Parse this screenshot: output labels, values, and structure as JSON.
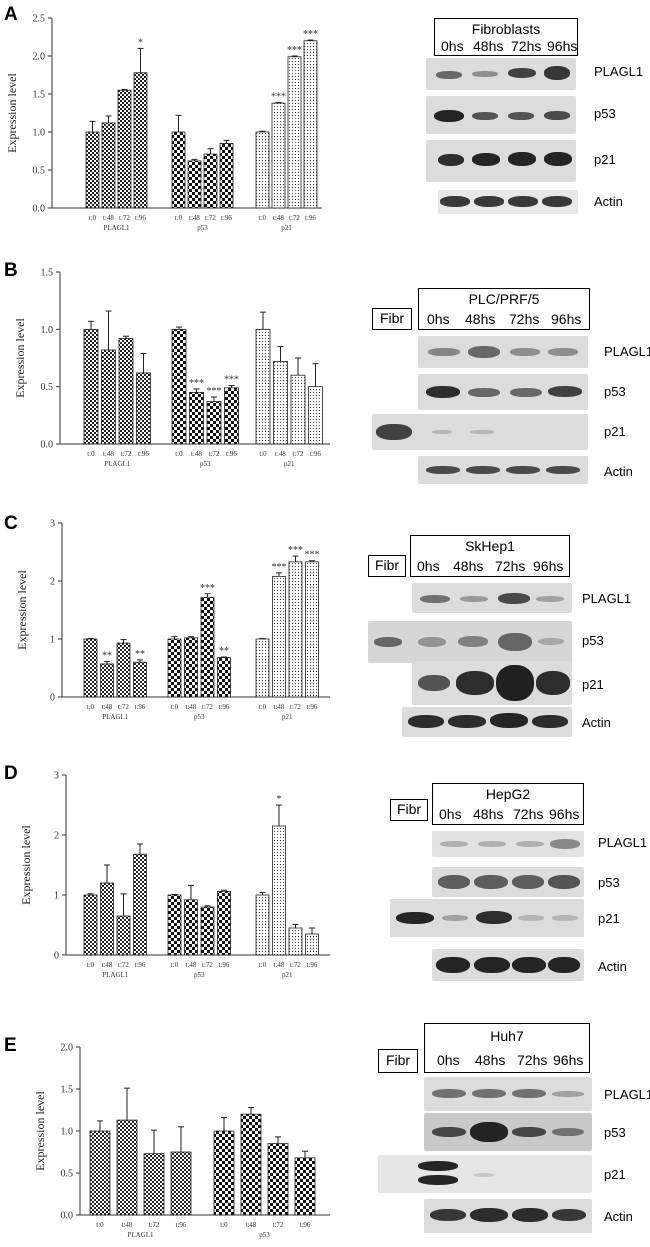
{
  "chart_data": [
    {
      "type": "bar",
      "panel": "A",
      "ylabel": "Expression level",
      "ylim": [
        0,
        2.5
      ],
      "yticks": [
        "0.0",
        "0.5",
        "1.0",
        "1.5",
        "2.0",
        "2.5"
      ],
      "groups": [
        {
          "name": "PLAGL1",
          "pattern": "check-small",
          "categories": [
            "t:0",
            "t:48",
            "t:72",
            "t:96"
          ],
          "values": [
            1.0,
            1.12,
            1.55,
            1.78
          ],
          "errors": [
            0.14,
            0.09,
            0.01,
            0.32
          ],
          "sig": [
            "",
            "",
            "",
            "*"
          ]
        },
        {
          "name": "p53",
          "pattern": "check-large",
          "categories": [
            "t:0",
            "t:48",
            "t:72",
            "t:96"
          ],
          "values": [
            1.0,
            0.62,
            0.71,
            0.85
          ],
          "errors": [
            0.22,
            0.02,
            0.07,
            0.04
          ],
          "sig": [
            "",
            "",
            "",
            ""
          ]
        },
        {
          "name": "p21",
          "pattern": "dots",
          "categories": [
            "t:0",
            "t:48",
            "t:72",
            "t:96"
          ],
          "values": [
            1.0,
            1.38,
            1.99,
            2.2
          ],
          "errors": [
            0.01,
            0.01,
            0.01,
            0.01
          ],
          "sig": [
            "",
            "***",
            "***",
            "***"
          ]
        }
      ]
    },
    {
      "type": "bar",
      "panel": "B",
      "ylabel": "Expression level",
      "ylim": [
        0,
        1.5
      ],
      "yticks": [
        "0.0",
        "0.5",
        "1.0",
        "1.5"
      ],
      "groups": [
        {
          "name": "PLAGL1",
          "pattern": "check-small",
          "categories": [
            "t:0",
            "t:48",
            "t:72",
            "t:96"
          ],
          "values": [
            1.0,
            0.82,
            0.92,
            0.62
          ],
          "errors": [
            0.07,
            0.34,
            0.02,
            0.17
          ],
          "sig": [
            "",
            "",
            "",
            ""
          ]
        },
        {
          "name": "p53",
          "pattern": "check-large",
          "categories": [
            "t:0",
            "t:48",
            "t:72",
            "t:96"
          ],
          "values": [
            1.0,
            0.45,
            0.37,
            0.49
          ],
          "errors": [
            0.02,
            0.03,
            0.04,
            0.02
          ],
          "sig": [
            "",
            "***",
            "***",
            "***"
          ]
        },
        {
          "name": "p21",
          "pattern": "dots",
          "categories": [
            "t:0",
            "t:48",
            "t:72",
            "t:96"
          ],
          "values": [
            1.0,
            0.72,
            0.6,
            0.5
          ],
          "errors": [
            0.15,
            0.13,
            0.15,
            0.2
          ],
          "sig": [
            "",
            "",
            "",
            ""
          ]
        }
      ]
    },
    {
      "type": "bar",
      "panel": "C",
      "ylabel": "Expression level",
      "ylim": [
        0,
        3
      ],
      "yticks": [
        "0",
        "1",
        "2",
        "3"
      ],
      "groups": [
        {
          "name": "PLAGL1",
          "pattern": "check-small",
          "categories": [
            "t:0",
            "t:48",
            "t:72",
            "t:96"
          ],
          "values": [
            1.0,
            0.57,
            0.93,
            0.6
          ],
          "errors": [
            0.01,
            0.04,
            0.06,
            0.04
          ],
          "sig": [
            "",
            "**",
            "",
            "**"
          ]
        },
        {
          "name": "p53",
          "pattern": "check-large",
          "categories": [
            "t:0",
            "t:48",
            "t:72",
            "t:96"
          ],
          "values": [
            1.0,
            1.02,
            1.72,
            0.68
          ],
          "errors": [
            0.04,
            0.02,
            0.06,
            0.01
          ],
          "sig": [
            "",
            "",
            "***",
            "**"
          ]
        },
        {
          "name": "p21",
          "pattern": "dots",
          "categories": [
            "t:0",
            "t:48",
            "t:72",
            "t:96"
          ],
          "values": [
            1.0,
            2.08,
            2.33,
            2.33
          ],
          "errors": [
            0.01,
            0.06,
            0.1,
            0.02
          ],
          "sig": [
            "",
            "***",
            "***",
            "***"
          ]
        }
      ]
    },
    {
      "type": "bar",
      "panel": "D",
      "ylabel": "Expression level",
      "ylim": [
        0,
        3
      ],
      "yticks": [
        "0",
        "1",
        "2",
        "3"
      ],
      "groups": [
        {
          "name": "PLAGL1",
          "pattern": "check-small",
          "categories": [
            "t:0",
            "t:48",
            "t:72",
            "t:96"
          ],
          "values": [
            1.0,
            1.2,
            0.65,
            1.68
          ],
          "errors": [
            0.02,
            0.3,
            0.37,
            0.17
          ],
          "sig": [
            "",
            "",
            "",
            ""
          ]
        },
        {
          "name": "p53",
          "pattern": "check-large",
          "categories": [
            "t:0",
            "t:48",
            "t:72",
            "t:96"
          ],
          "values": [
            1.0,
            0.92,
            0.8,
            1.06
          ],
          "errors": [
            0.01,
            0.24,
            0.02,
            0.02
          ],
          "sig": [
            "",
            "",
            "",
            ""
          ]
        },
        {
          "name": "p21",
          "pattern": "dots",
          "categories": [
            "t:0",
            "t:48",
            "t:72",
            "t:96"
          ],
          "values": [
            1.0,
            2.15,
            0.45,
            0.35
          ],
          "errors": [
            0.04,
            0.35,
            0.06,
            0.1
          ],
          "sig": [
            "",
            "*",
            "",
            ""
          ]
        }
      ]
    },
    {
      "type": "bar",
      "panel": "E",
      "ylabel": "Expression level",
      "ylim": [
        0,
        2.0
      ],
      "yticks": [
        "0.0",
        "0.5",
        "1.0",
        "1.5",
        "2.0"
      ],
      "groups": [
        {
          "name": "PLAGL1",
          "pattern": "check-small",
          "categories": [
            "t:0",
            "t:48",
            "t:72",
            "t:96"
          ],
          "values": [
            1.0,
            1.13,
            0.73,
            0.75
          ],
          "errors": [
            0.12,
            0.38,
            0.28,
            0.3
          ],
          "sig": [
            "",
            "",
            "",
            ""
          ]
        },
        {
          "name": "p53",
          "pattern": "check-large",
          "categories": [
            "t:0",
            "t:48",
            "t:72",
            "t:96"
          ],
          "values": [
            1.0,
            1.2,
            0.85,
            0.68
          ],
          "errors": [
            0.16,
            0.08,
            0.08,
            0.08
          ],
          "sig": [
            "",
            "",
            "",
            ""
          ]
        }
      ]
    }
  ],
  "panels": {
    "A": {
      "letter": "A",
      "blot_title": "Fibroblasts",
      "timepoints": [
        "0hs",
        "48hs",
        "72hs",
        "96hs"
      ],
      "rows": [
        "PLAGL1",
        "p53",
        "p21",
        "Actin"
      ]
    },
    "B": {
      "letter": "B",
      "blot_title": "PLC/PRF/5",
      "fibr": "Fibr",
      "timepoints": [
        "0hs",
        "48hs",
        "72hs",
        "96hs"
      ],
      "rows": [
        "PLAGL1",
        "p53",
        "p21",
        "Actin"
      ]
    },
    "C": {
      "letter": "C",
      "blot_title": "SkHep1",
      "fibr": "Fibr",
      "timepoints": [
        "0hs",
        "48hs",
        "72hs",
        "96hs"
      ],
      "rows": [
        "PLAGL1",
        "p53",
        "p21",
        "Actin"
      ]
    },
    "D": {
      "letter": "D",
      "blot_title": "HepG2",
      "fibr": "Fibr",
      "timepoints": [
        "0hs",
        "48hs",
        "72hs",
        "96hs"
      ],
      "rows": [
        "PLAGL1",
        "p53",
        "p21",
        "Actin"
      ]
    },
    "E": {
      "letter": "E",
      "blot_title": "Huh7",
      "fibr": "Fibr",
      "timepoints": [
        "0hs",
        "48hs",
        "72hs",
        "96hs"
      ],
      "rows": [
        "PLAGL1",
        "p53",
        "p21",
        "Actin"
      ]
    }
  }
}
